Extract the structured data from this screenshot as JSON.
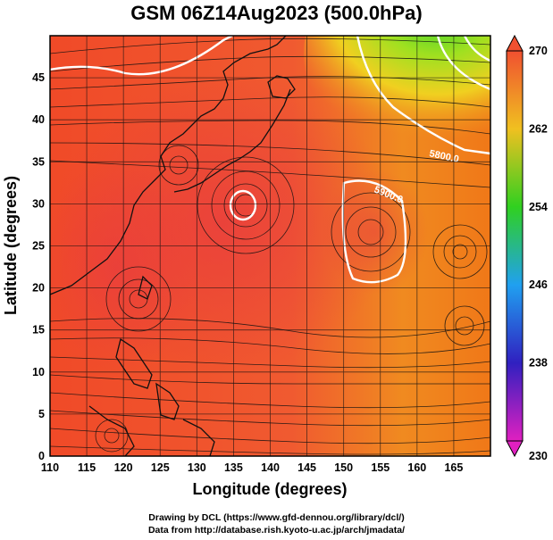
{
  "title": "GSM 06Z14Aug2023 (500.0hPa)",
  "x_axis": {
    "label": "Longitude (degrees)",
    "ticks": [
      "110",
      "115",
      "120",
      "125",
      "130",
      "135",
      "140",
      "145",
      "150",
      "155",
      "160",
      "165"
    ]
  },
  "y_axis": {
    "label": "Latitude (degrees)",
    "ticks": [
      "0",
      "5",
      "10",
      "15",
      "20",
      "25",
      "30",
      "35",
      "40",
      "45"
    ]
  },
  "colorbar": {
    "ticks": [
      "230",
      "238",
      "246",
      "254",
      "262",
      "270"
    ],
    "colors": [
      "#e020c0",
      "#3020c0",
      "#20a0f0",
      "#30d020",
      "#f0c020",
      "#f05030"
    ]
  },
  "contours": [
    {
      "label": "5800.0"
    },
    {
      "label": "5900.0"
    }
  ],
  "credits": {
    "line1": "Drawing by DCL (https://www.gfd-dennou.org/library/dcl/)",
    "line2": "Data from http://database.rish.kyoto-u.ac.jp/arch/jmadata/"
  },
  "chart_data": {
    "type": "heatmap",
    "title": "GSM 06Z14Aug2023 (500.0hPa)",
    "xlabel": "Longitude (degrees)",
    "ylabel": "Latitude (degrees)",
    "xlim": [
      110,
      170
    ],
    "ylim": [
      0,
      50
    ],
    "color_range": [
      230,
      270
    ],
    "colorbar_ticks": [
      230,
      238,
      246,
      254,
      262,
      270
    ],
    "grid": true,
    "overlay": "streamlines",
    "contour_labels": [
      "5800.0",
      "5900.0"
    ]
  }
}
